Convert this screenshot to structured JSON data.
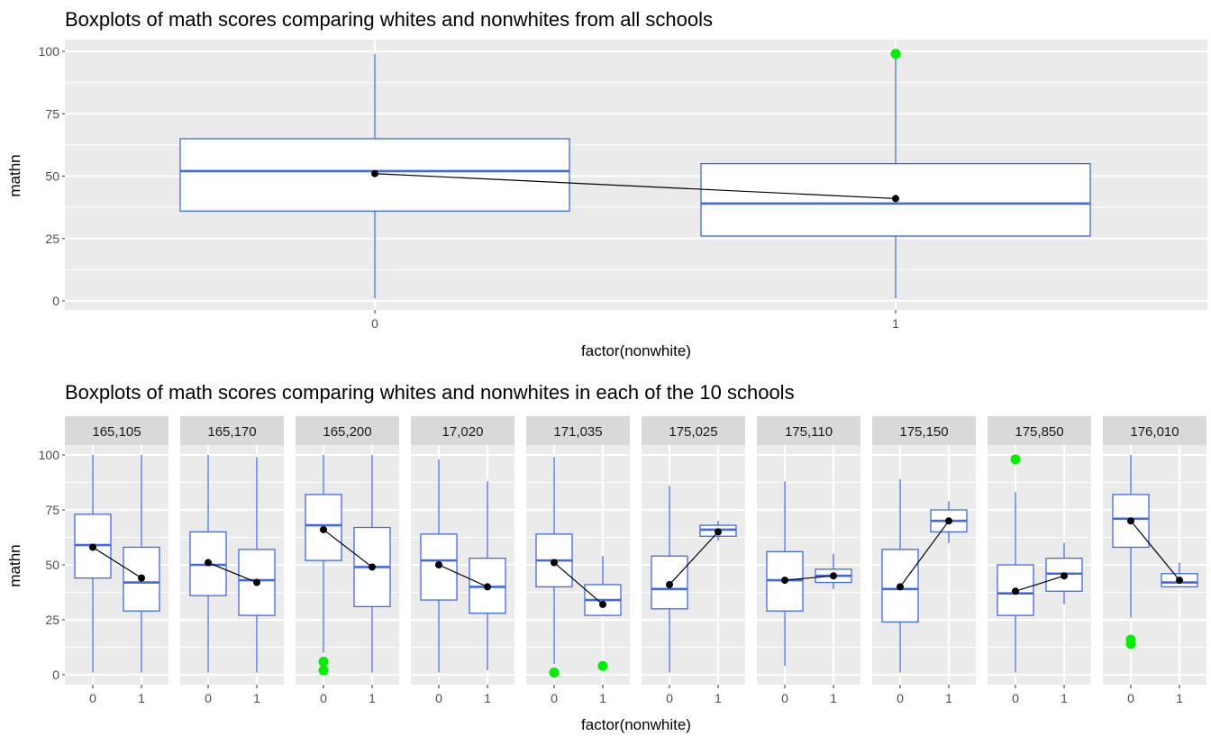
{
  "colors": {
    "panel_bg": "#ebebeb",
    "grid": "#ffffff",
    "strip_bg": "#d9d9d9",
    "box_line": "#4169e1",
    "box_fill": "#ffffff",
    "outlier": "#00ee00",
    "mean_point": "#000000"
  },
  "chart_data": [
    {
      "type": "boxplot",
      "title": "Boxplots of math scores comparing whites and nonwhites from all schools",
      "xlabel": "factor(nonwhite)",
      "ylabel": "mathn",
      "ylim": [
        0,
        100
      ],
      "yticks": [
        0,
        25,
        50,
        75,
        100
      ],
      "grid": true,
      "categories": [
        "0",
        "1"
      ],
      "boxes": [
        {
          "group": "0",
          "whisker_low": 1,
          "q1": 36,
          "median": 52,
          "q3": 65,
          "whisker_high": 99,
          "mean": 51,
          "outliers": []
        },
        {
          "group": "1",
          "whisker_low": 1,
          "q1": 26,
          "median": 39,
          "q3": 55,
          "whisker_high": 99,
          "mean": 41,
          "outliers": [
            99
          ]
        }
      ],
      "mean_line": true
    },
    {
      "type": "boxplot",
      "title": "Boxplots of math scores comparing whites and nonwhites in each of the 10 schools",
      "xlabel": "factor(nonwhite)",
      "ylabel": "mathn",
      "ylim": [
        0,
        100
      ],
      "yticks": [
        0,
        25,
        50,
        75,
        100
      ],
      "grid": true,
      "facet_by": "school",
      "categories": [
        "0",
        "1"
      ],
      "facets": [
        {
          "label": "165,105",
          "boxes": [
            {
              "group": "0",
              "whisker_low": 1,
              "q1": 44,
              "median": 59,
              "q3": 73,
              "whisker_high": 100,
              "mean": 58,
              "outliers": []
            },
            {
              "group": "1",
              "whisker_low": 1,
              "q1": 29,
              "median": 42,
              "q3": 58,
              "whisker_high": 100,
              "mean": 44,
              "outliers": []
            }
          ]
        },
        {
          "label": "165,170",
          "boxes": [
            {
              "group": "0",
              "whisker_low": 1,
              "q1": 36,
              "median": 50,
              "q3": 65,
              "whisker_high": 100,
              "mean": 51,
              "outliers": []
            },
            {
              "group": "1",
              "whisker_low": 1,
              "q1": 27,
              "median": 43,
              "q3": 57,
              "whisker_high": 99,
              "mean": 42,
              "outliers": []
            }
          ]
        },
        {
          "label": "165,200",
          "boxes": [
            {
              "group": "0",
              "whisker_low": 10,
              "q1": 52,
              "median": 68,
              "q3": 82,
              "whisker_high": 100,
              "mean": 66,
              "outliers": [
                6,
                2
              ]
            },
            {
              "group": "1",
              "whisker_low": 1,
              "q1": 31,
              "median": 49,
              "q3": 67,
              "whisker_high": 100,
              "mean": 49,
              "outliers": []
            }
          ]
        },
        {
          "label": "17,020",
          "boxes": [
            {
              "group": "0",
              "whisker_low": 1,
              "q1": 34,
              "median": 52,
              "q3": 64,
              "whisker_high": 98,
              "mean": 50,
              "outliers": []
            },
            {
              "group": "1",
              "whisker_low": 2,
              "q1": 28,
              "median": 40,
              "q3": 53,
              "whisker_high": 88,
              "mean": 40,
              "outliers": []
            }
          ]
        },
        {
          "label": "171,035",
          "boxes": [
            {
              "group": "0",
              "whisker_low": 5,
              "q1": 40,
              "median": 52,
              "q3": 64,
              "whisker_high": 99,
              "mean": 51,
              "outliers": [
                1
              ]
            },
            {
              "group": "1",
              "whisker_low": 27,
              "q1": 27,
              "median": 34,
              "q3": 41,
              "whisker_high": 54,
              "mean": 32,
              "outliers": [
                4
              ]
            }
          ]
        },
        {
          "label": "175,025",
          "boxes": [
            {
              "group": "0",
              "whisker_low": 1,
              "q1": 30,
              "median": 39,
              "q3": 54,
              "whisker_high": 86,
              "mean": 41,
              "outliers": []
            },
            {
              "group": "1",
              "whisker_low": 61,
              "q1": 63,
              "median": 66,
              "q3": 68,
              "whisker_high": 70,
              "mean": 65,
              "outliers": []
            }
          ]
        },
        {
          "label": "175,110",
          "boxes": [
            {
              "group": "0",
              "whisker_low": 4,
              "q1": 29,
              "median": 43,
              "q3": 56,
              "whisker_high": 88,
              "mean": 43,
              "outliers": []
            },
            {
              "group": "1",
              "whisker_low": 39,
              "q1": 42,
              "median": 45,
              "q3": 48,
              "whisker_high": 55,
              "mean": 45,
              "outliers": []
            }
          ]
        },
        {
          "label": "175,150",
          "boxes": [
            {
              "group": "0",
              "whisker_low": 1,
              "q1": 24,
              "median": 39,
              "q3": 57,
              "whisker_high": 89,
              "mean": 40,
              "outliers": []
            },
            {
              "group": "1",
              "whisker_low": 60,
              "q1": 65,
              "median": 70,
              "q3": 75,
              "whisker_high": 79,
              "mean": 70,
              "outliers": []
            }
          ]
        },
        {
          "label": "175,850",
          "boxes": [
            {
              "group": "0",
              "whisker_low": 1,
              "q1": 27,
              "median": 37,
              "q3": 50,
              "whisker_high": 83,
              "mean": 38,
              "outliers": [
                98
              ]
            },
            {
              "group": "1",
              "whisker_low": 32,
              "q1": 38,
              "median": 46,
              "q3": 53,
              "whisker_high": 60,
              "mean": 45,
              "outliers": []
            }
          ]
        },
        {
          "label": "176,010",
          "boxes": [
            {
              "group": "0",
              "whisker_low": 26,
              "q1": 58,
              "median": 71,
              "q3": 82,
              "whisker_high": 100,
              "mean": 70,
              "outliers": [
                16,
                14
              ]
            },
            {
              "group": "1",
              "whisker_low": 40,
              "q1": 40,
              "median": 42,
              "q3": 46,
              "whisker_high": 51,
              "mean": 43,
              "outliers": []
            }
          ]
        }
      ],
      "mean_line": true
    }
  ]
}
